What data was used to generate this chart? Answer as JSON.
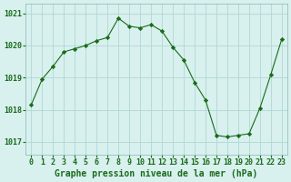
{
  "x": [
    0,
    1,
    2,
    3,
    4,
    5,
    6,
    7,
    8,
    9,
    10,
    11,
    12,
    13,
    14,
    15,
    16,
    17,
    18,
    19,
    20,
    21,
    22,
    23
  ],
  "y": [
    1018.15,
    1018.95,
    1019.35,
    1019.8,
    1019.9,
    1020.0,
    1020.15,
    1020.25,
    1020.85,
    1020.6,
    1020.55,
    1020.65,
    1020.45,
    1019.95,
    1019.55,
    1018.85,
    1018.3,
    1017.2,
    1017.15,
    1017.2,
    1017.25,
    1018.05,
    1019.1,
    1020.2
  ],
  "line_color": "#1a6b1a",
  "marker": "D",
  "marker_size": 2.2,
  "background_color": "#d8f0ee",
  "grid_color": "#b0d8d4",
  "ylabel_ticks": [
    1017,
    1018,
    1019,
    1020,
    1021
  ],
  "xlabel_label": "Graphe pression niveau de la mer (hPa)",
  "ylim": [
    1016.6,
    1021.3
  ],
  "xlim": [
    -0.5,
    23.5
  ],
  "tick_color": "#1a6b1a",
  "label_color": "#1a6b1a",
  "xlabel_fontsize": 7.0,
  "tick_fontsize": 6.0,
  "spine_color": "#8ab8b4"
}
